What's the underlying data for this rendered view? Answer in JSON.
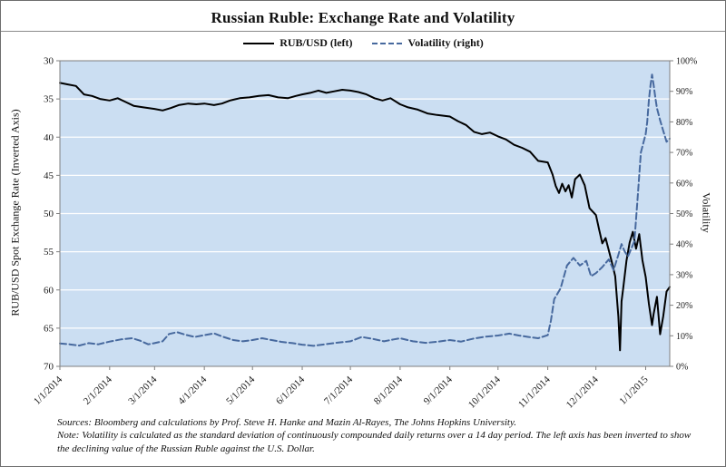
{
  "notes": {
    "sources": "Sources: Bloomberg and calculations by Prof. Steve H. Hanke and Mazin Al-Rayes, The Johns Hopkins University.",
    "note": "Note: Volatility is calculated as the standard deviation of continuously compounded daily returns over a 14 day period. The left axis has been inverted to show the declining value of the Russian Ruble against the U.S. Dollar."
  },
  "chart_data": {
    "type": "line",
    "title": "Russian Ruble: Exchange Rate and Volatility",
    "x_range": [
      0,
      380
    ],
    "x_ticks": [
      {
        "label": "1/1/2014",
        "day": 0
      },
      {
        "label": "2/1/2014",
        "day": 31
      },
      {
        "label": "3/1/2014",
        "day": 59
      },
      {
        "label": "4/1/2014",
        "day": 90
      },
      {
        "label": "5/1/2014",
        "day": 120
      },
      {
        "label": "6/1/2014",
        "day": 151
      },
      {
        "label": "7/1/2014",
        "day": 181
      },
      {
        "label": "8/1/2014",
        "day": 212
      },
      {
        "label": "9/1/2014",
        "day": 243
      },
      {
        "label": "10/1/2014",
        "day": 273
      },
      {
        "label": "11/1/2014",
        "day": 304
      },
      {
        "label": "12/1/2014",
        "day": 334
      },
      {
        "label": "1/1/2015",
        "day": 365
      }
    ],
    "left_axis": {
      "label": "RUB/USD Spot Exchange  Rate (Inverted Axis)",
      "range": [
        30,
        70
      ],
      "inverted": true,
      "ticks": [
        30,
        35,
        40,
        45,
        50,
        55,
        60,
        65,
        70
      ]
    },
    "right_axis": {
      "label": "Volatility",
      "range": [
        0,
        100
      ],
      "ticks": [
        "0%",
        "10%",
        "20%",
        "30%",
        "40%",
        "50%",
        "60%",
        "70%",
        "80%",
        "90%",
        "100%"
      ]
    },
    "colors": {
      "plot_bg": "#cbdef2",
      "plot_border": "#7f7f7f",
      "grid": "#ffffff",
      "axis": "#7f7f7f",
      "text": "#1a1a1a"
    },
    "series": [
      {
        "name": "RUB/USD (left)",
        "axis": "left",
        "style": "solid",
        "color": "#000000",
        "width": 2,
        "points": [
          [
            0,
            32.9
          ],
          [
            5,
            33.1
          ],
          [
            10,
            33.3
          ],
          [
            15,
            34.4
          ],
          [
            20,
            34.6
          ],
          [
            25,
            35.0
          ],
          [
            31,
            35.2
          ],
          [
            36,
            34.9
          ],
          [
            41,
            35.4
          ],
          [
            46,
            35.9
          ],
          [
            52,
            36.1
          ],
          [
            59,
            36.3
          ],
          [
            64,
            36.5
          ],
          [
            69,
            36.2
          ],
          [
            74,
            35.8
          ],
          [
            80,
            35.6
          ],
          [
            85,
            35.7
          ],
          [
            90,
            35.6
          ],
          [
            96,
            35.8
          ],
          [
            101,
            35.6
          ],
          [
            106,
            35.2
          ],
          [
            112,
            34.9
          ],
          [
            118,
            34.8
          ],
          [
            124,
            34.6
          ],
          [
            130,
            34.5
          ],
          [
            136,
            34.8
          ],
          [
            142,
            34.9
          ],
          [
            147,
            34.6
          ],
          [
            151,
            34.4
          ],
          [
            156,
            34.2
          ],
          [
            161,
            33.9
          ],
          [
            166,
            34.2
          ],
          [
            171,
            34.0
          ],
          [
            176,
            33.8
          ],
          [
            181,
            33.9
          ],
          [
            186,
            34.1
          ],
          [
            191,
            34.4
          ],
          [
            196,
            34.9
          ],
          [
            201,
            35.2
          ],
          [
            206,
            34.9
          ],
          [
            212,
            35.7
          ],
          [
            217,
            36.1
          ],
          [
            223,
            36.4
          ],
          [
            229,
            36.9
          ],
          [
            235,
            37.1
          ],
          [
            243,
            37.3
          ],
          [
            248,
            37.9
          ],
          [
            253,
            38.4
          ],
          [
            258,
            39.3
          ],
          [
            263,
            39.6
          ],
          [
            268,
            39.4
          ],
          [
            273,
            39.9
          ],
          [
            278,
            40.3
          ],
          [
            283,
            41.0
          ],
          [
            288,
            41.4
          ],
          [
            293,
            41.9
          ],
          [
            298,
            43.1
          ],
          [
            304,
            43.3
          ],
          [
            307,
            44.9
          ],
          [
            309,
            46.4
          ],
          [
            311,
            47.3
          ],
          [
            313,
            46.1
          ],
          [
            315,
            47.1
          ],
          [
            317,
            46.3
          ],
          [
            319,
            47.9
          ],
          [
            321,
            45.5
          ],
          [
            324,
            44.9
          ],
          [
            327,
            46.3
          ],
          [
            330,
            49.3
          ],
          [
            334,
            50.2
          ],
          [
            336,
            52.1
          ],
          [
            338,
            53.9
          ],
          [
            340,
            53.2
          ],
          [
            342,
            54.8
          ],
          [
            344,
            56.4
          ],
          [
            346,
            58.2
          ],
          [
            348,
            63.5
          ],
          [
            349,
            67.9
          ],
          [
            350,
            61.5
          ],
          [
            351,
            59.8
          ],
          [
            353,
            56.2
          ],
          [
            355,
            53.8
          ],
          [
            357,
            52.4
          ],
          [
            359,
            54.6
          ],
          [
            361,
            52.7
          ],
          [
            363,
            56.1
          ],
          [
            365,
            58.3
          ],
          [
            367,
            61.8
          ],
          [
            369,
            64.6
          ],
          [
            370,
            63.1
          ],
          [
            372,
            60.9
          ],
          [
            374,
            65.8
          ],
          [
            376,
            63.4
          ],
          [
            378,
            60.2
          ],
          [
            380,
            59.6
          ]
        ]
      },
      {
        "name": "Volatility (right)",
        "axis": "right",
        "style": "dashed",
        "color": "#47699e",
        "width": 2,
        "points": [
          [
            0,
            7.5
          ],
          [
            6,
            7.2
          ],
          [
            12,
            6.8
          ],
          [
            18,
            7.6
          ],
          [
            24,
            7.2
          ],
          [
            31,
            8.1
          ],
          [
            38,
            8.8
          ],
          [
            45,
            9.2
          ],
          [
            50,
            8.4
          ],
          [
            55,
            7.2
          ],
          [
            59,
            7.6
          ],
          [
            64,
            8.2
          ],
          [
            68,
            10.6
          ],
          [
            73,
            11.2
          ],
          [
            78,
            10.4
          ],
          [
            84,
            9.6
          ],
          [
            90,
            10.2
          ],
          [
            96,
            10.8
          ],
          [
            102,
            9.6
          ],
          [
            108,
            8.6
          ],
          [
            114,
            8.2
          ],
          [
            120,
            8.6
          ],
          [
            126,
            9.2
          ],
          [
            132,
            8.6
          ],
          [
            138,
            8.0
          ],
          [
            145,
            7.6
          ],
          [
            151,
            7.1
          ],
          [
            158,
            6.7
          ],
          [
            165,
            7.2
          ],
          [
            172,
            7.7
          ],
          [
            181,
            8.2
          ],
          [
            188,
            9.6
          ],
          [
            195,
            9.0
          ],
          [
            202,
            8.2
          ],
          [
            208,
            8.8
          ],
          [
            212,
            9.2
          ],
          [
            220,
            8.2
          ],
          [
            228,
            7.7
          ],
          [
            236,
            8.1
          ],
          [
            243,
            8.6
          ],
          [
            250,
            8.1
          ],
          [
            258,
            9.1
          ],
          [
            265,
            9.7
          ],
          [
            273,
            10.1
          ],
          [
            280,
            10.7
          ],
          [
            286,
            10.1
          ],
          [
            292,
            9.6
          ],
          [
            298,
            9.2
          ],
          [
            304,
            10.2
          ],
          [
            306,
            15.0
          ],
          [
            308,
            22.0
          ],
          [
            312,
            25.5
          ],
          [
            316,
            33.0
          ],
          [
            320,
            35.5
          ],
          [
            324,
            33.0
          ],
          [
            328,
            34.5
          ],
          [
            331,
            29.5
          ],
          [
            334,
            30.5
          ],
          [
            338,
            32.5
          ],
          [
            342,
            35.0
          ],
          [
            345,
            31.5
          ],
          [
            348,
            36.5
          ],
          [
            350,
            40.0
          ],
          [
            352,
            37.5
          ],
          [
            354,
            36.0
          ],
          [
            356,
            38.5
          ],
          [
            358,
            41.0
          ],
          [
            360,
            55.0
          ],
          [
            362,
            70.0
          ],
          [
            364,
            74.0
          ],
          [
            365,
            76.0
          ],
          [
            366,
            80.0
          ],
          [
            367,
            87.0
          ],
          [
            368,
            92.0
          ],
          [
            369,
            95.5
          ],
          [
            370,
            92.0
          ],
          [
            371,
            88.0
          ],
          [
            372,
            84.5
          ],
          [
            374,
            80.5
          ],
          [
            376,
            77.0
          ],
          [
            378,
            73.5
          ],
          [
            380,
            74.5
          ]
        ]
      }
    ]
  }
}
